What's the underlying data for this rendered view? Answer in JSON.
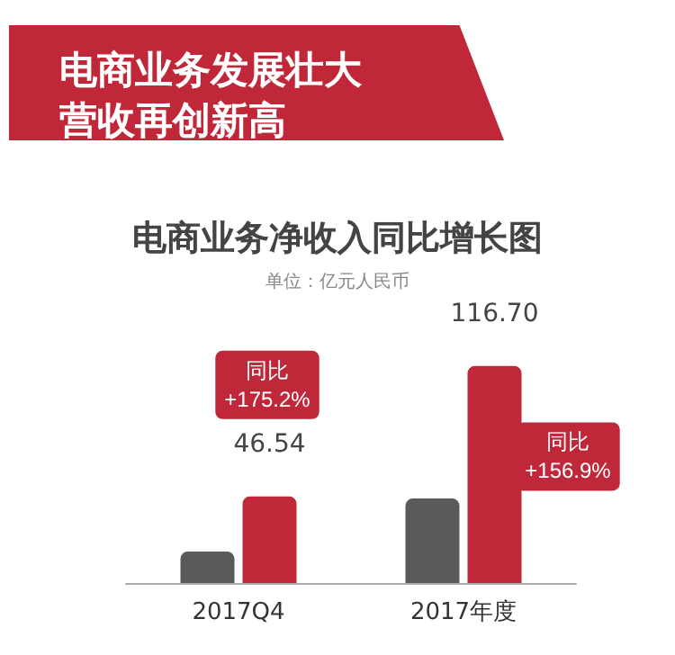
{
  "chart_data": {
    "type": "bar",
    "title": "电商业务发展壮大营收再创新高",
    "subtitle": "电商业务净收入同比增长图",
    "annotations": [
      "单位：亿元人民币",
      "同比\n+175.2%",
      "同比\n+156.9%"
    ],
    "categories": [
      "2017Q4",
      "2017年度"
    ],
    "tick_labels": "x",
    "series": [
      {
        "color": "#5a5a5a",
        "values": [
          16.91,
          45.43
        ]
      },
      {
        "color": "#c0283a",
        "values": [
          46.54,
          116.7
        ],
        "value_labels": [
          "46.54",
          "116.70"
        ]
      }
    ],
    "grid": false
  }
}
